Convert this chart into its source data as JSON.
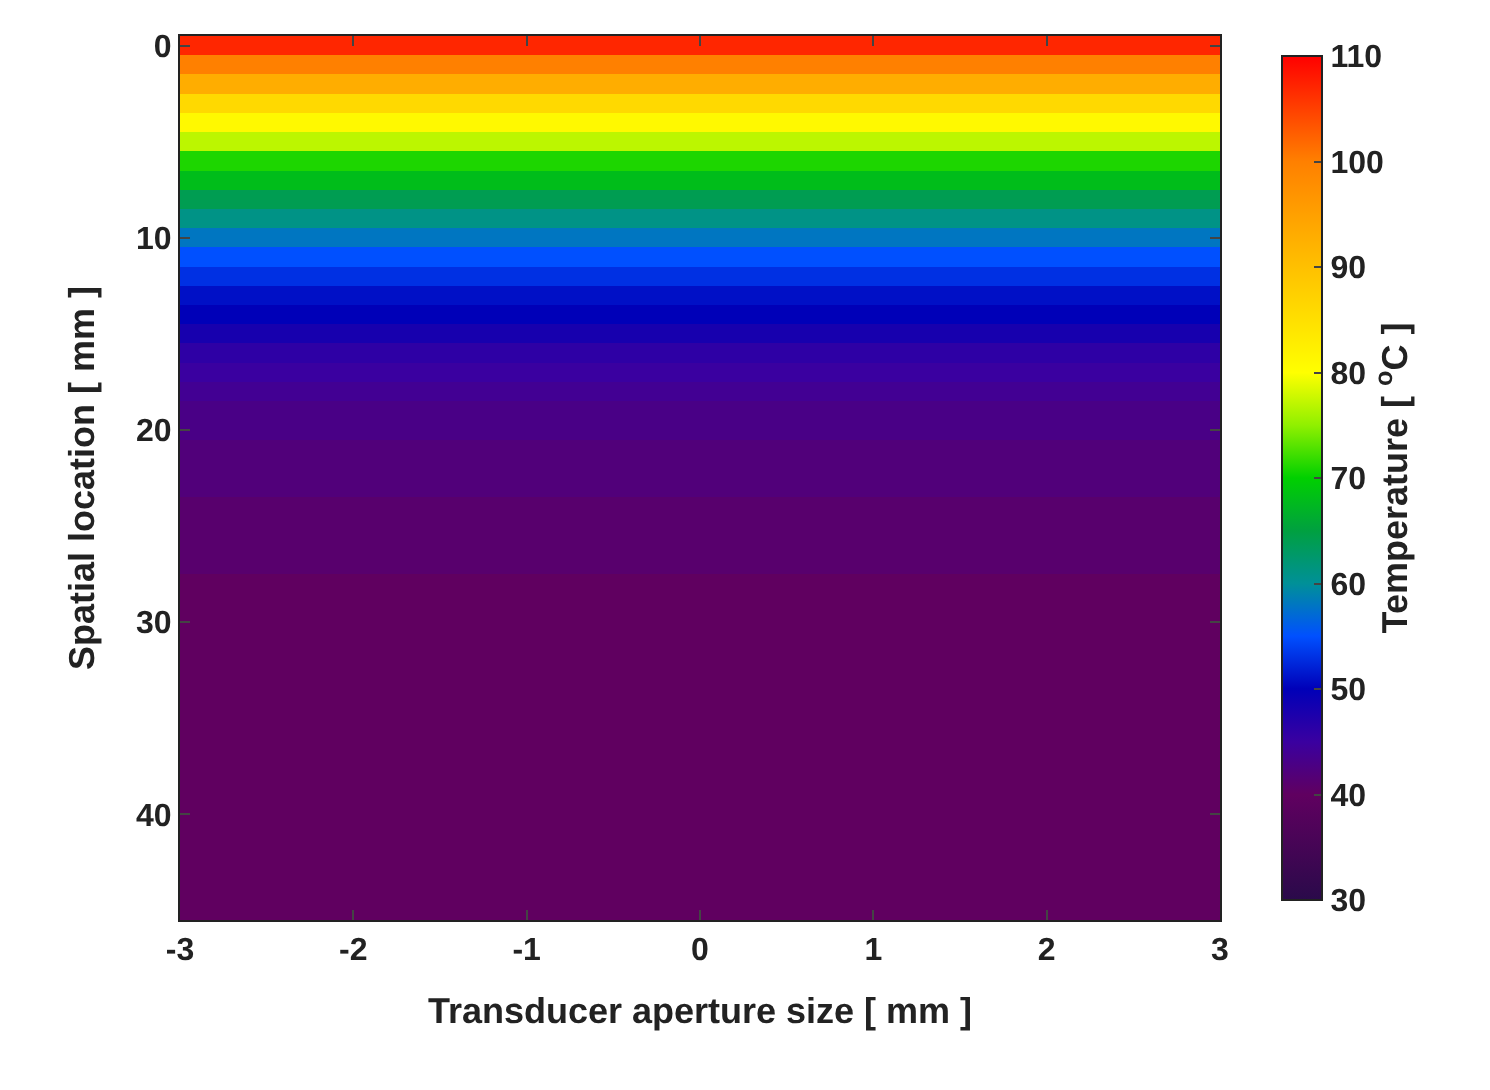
{
  "chart_data": {
    "type": "heatmap",
    "xlabel": "Transducer aperture size [ mm ]",
    "ylabel": "Spatial location [ mm ]",
    "clabel": "Temperature [ $^{o}$C ]",
    "x": [
      -2.5,
      -1.5,
      -0.5,
      0.5,
      1.5,
      2.5
    ],
    "y_categories": [
      "0",
      null,
      null,
      null,
      null,
      null,
      null,
      null,
      null,
      null,
      "10",
      null,
      null,
      null,
      null,
      null,
      null,
      null,
      null,
      null,
      "20",
      null,
      null,
      null,
      null,
      null,
      null,
      null,
      null,
      null,
      "30",
      null,
      null,
      null,
      null,
      null,
      null,
      null,
      null,
      null,
      "40",
      null,
      null,
      null,
      null,
      null
    ],
    "cells": [
      [
        107,
        107,
        107,
        107,
        107,
        107
      ],
      [
        100,
        100,
        100,
        100,
        100,
        100
      ],
      [
        93,
        93,
        93,
        93,
        93,
        93
      ],
      [
        86,
        86,
        86,
        86,
        86,
        86
      ],
      [
        81,
        81,
        81,
        81,
        81,
        81
      ],
      [
        77,
        77,
        77,
        77,
        77,
        77
      ],
      [
        71,
        71,
        71,
        71,
        71,
        71
      ],
      [
        68,
        68,
        68,
        68,
        68,
        68
      ],
      [
        64,
        64,
        64,
        64,
        64,
        64
      ],
      [
        61,
        61,
        61,
        61,
        61,
        61
      ],
      [
        58,
        58,
        58,
        58,
        58,
        58
      ],
      [
        55,
        55,
        55,
        55,
        55,
        55
      ],
      [
        53,
        53,
        53,
        53,
        53,
        53
      ],
      [
        51,
        51,
        51,
        51,
        51,
        51
      ],
      [
        50,
        50,
        50,
        50,
        50,
        50
      ],
      [
        48,
        48,
        48,
        48,
        48,
        48
      ],
      [
        46,
        46,
        46,
        46,
        46,
        46
      ],
      [
        45,
        45,
        45,
        45,
        45,
        45
      ],
      [
        44,
        44,
        44,
        44,
        44,
        44
      ],
      [
        43,
        43,
        43,
        43,
        43,
        43
      ],
      [
        43,
        43,
        43,
        43,
        43,
        43
      ],
      [
        42,
        42,
        42,
        42,
        42,
        42
      ],
      [
        42,
        42,
        42,
        42,
        42,
        42
      ],
      [
        42,
        42,
        42,
        42,
        42,
        42
      ],
      [
        41,
        41,
        41,
        41,
        41,
        41
      ],
      [
        41,
        41,
        41,
        41,
        41,
        41
      ],
      [
        41,
        41,
        41,
        41,
        41,
        41
      ],
      [
        41,
        41,
        41,
        41,
        41,
        41
      ],
      [
        40,
        40,
        40,
        40,
        40,
        40
      ],
      [
        40,
        40,
        40,
        40,
        40,
        40
      ],
      [
        40,
        40,
        40,
        40,
        40,
        40
      ],
      [
        40,
        40,
        40,
        40,
        40,
        40
      ],
      [
        40,
        40,
        40,
        40,
        40,
        40
      ],
      [
        40,
        40,
        40,
        40,
        40,
        40
      ],
      [
        40,
        40,
        40,
        40,
        40,
        40
      ],
      [
        40,
        40,
        40,
        40,
        40,
        40
      ],
      [
        40,
        40,
        40,
        40,
        40,
        40
      ],
      [
        40,
        40,
        40,
        40,
        40,
        40
      ],
      [
        40,
        40,
        40,
        40,
        40,
        40
      ],
      [
        40,
        40,
        40,
        40,
        40,
        40
      ],
      [
        40,
        40,
        40,
        40,
        40,
        40
      ],
      [
        40,
        40,
        40,
        40,
        40,
        40
      ],
      [
        40,
        40,
        40,
        40,
        40,
        40
      ],
      [
        40,
        40,
        40,
        40,
        40,
        40
      ],
      [
        40,
        40,
        40,
        40,
        40,
        40
      ],
      [
        40,
        40,
        40,
        40,
        40,
        40
      ]
    ],
    "xlim": [
      -3,
      3
    ],
    "xticks": [
      -3,
      -2,
      -1,
      0,
      1,
      2,
      3
    ],
    "clim": [
      30,
      110
    ],
    "cticks": [
      30,
      40,
      50,
      60,
      70,
      80,
      90,
      100,
      110
    ]
  }
}
